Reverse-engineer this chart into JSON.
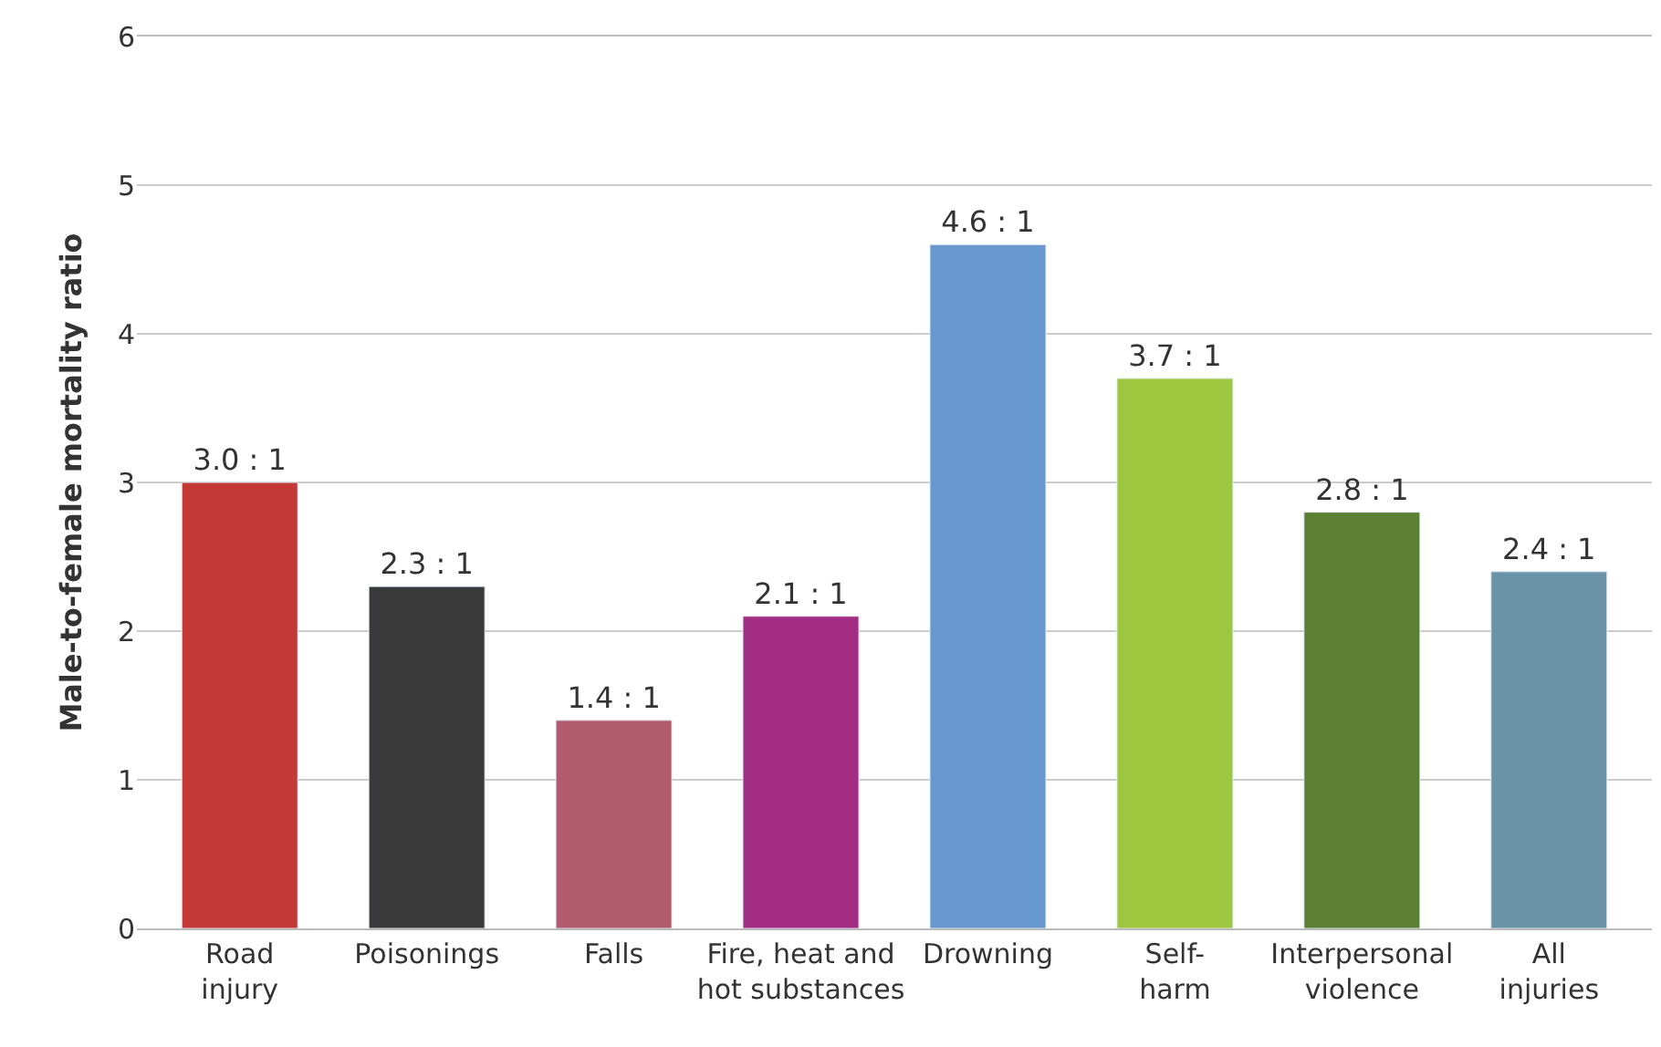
{
  "chart_data": {
    "type": "bar",
    "ylabel": "Male-to-female mortality ratio",
    "categories": [
      "Road\ninjury",
      "Poisonings",
      "Falls",
      "Fire, heat and\nhot substances",
      "Drowning",
      "Self-\nharm",
      "Interpersonal\nviolence",
      "All\ninjuries"
    ],
    "values": [
      3.0,
      2.3,
      1.4,
      2.1,
      4.6,
      3.7,
      2.8,
      2.4
    ],
    "value_labels": [
      "3.0 : 1",
      "2.3 : 1",
      "1.4 : 1",
      "2.1 : 1",
      "4.6 : 1",
      "3.7 : 1",
      "2.8 : 1",
      "2.4 : 1"
    ],
    "colors": [
      "#c43a37",
      "#3a3a3a",
      "#b05c6e",
      "#a22d82",
      "#6898d0",
      "#9dc73e",
      "#5b7f33",
      "#6a93a8"
    ],
    "ylim": [
      0,
      6
    ],
    "yticks": [
      0,
      1,
      2,
      3,
      4,
      5,
      6
    ],
    "grid": "y"
  }
}
